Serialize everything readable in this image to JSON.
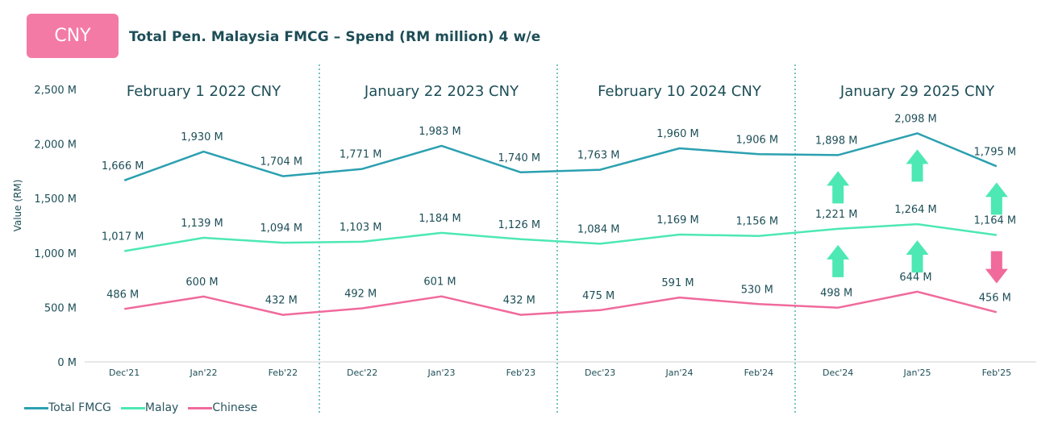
{
  "badge": "CNY",
  "title": "Total Pen. Malaysia FMCG – Spend (RM million) 4 w/e",
  "colors": {
    "total": "#2ba0b0",
    "malay": "#4de8b4",
    "chinese": "#f06a9c",
    "divider": "#2aa3a0",
    "text": "#1d4e57"
  },
  "chart_data": {
    "type": "line",
    "ylabel": "Value (RM)",
    "ylim": [
      0,
      2500
    ],
    "yticks": [
      "0 M",
      "500 M",
      "1,000 M",
      "1,500 M",
      "2,000 M",
      "2,500 M"
    ],
    "categories": [
      "Dec'21",
      "Jan'22",
      "Feb'22",
      "Dec'22",
      "Jan'23",
      "Feb'23",
      "Dec'23",
      "Jan'24",
      "Feb'24",
      "Dec'24",
      "Jan'25",
      "Feb'25"
    ],
    "periods": [
      "February 1 2022 CNY",
      "January 22 2023 CNY",
      "February 10 2024 CNY",
      "January 29 2025 CNY"
    ],
    "series": [
      {
        "name": "Total FMCG",
        "key": "total",
        "values": [
          1666,
          1930,
          1704,
          1771,
          1983,
          1740,
          1763,
          1960,
          1906,
          1898,
          2098,
          1795
        ],
        "labels": [
          "1,666 M",
          "1,930 M",
          "1,704 M",
          "1,771 M",
          "1,983 M",
          "1,740 M",
          "1,763 M",
          "1,960 M",
          "1,906 M",
          "1,898 M",
          "2,098 M",
          "1,795 M"
        ]
      },
      {
        "name": "Malay",
        "key": "malay",
        "values": [
          1017,
          1139,
          1094,
          1103,
          1184,
          1126,
          1084,
          1169,
          1156,
          1221,
          1264,
          1164
        ],
        "labels": [
          "1,017 M",
          "1,139 M",
          "1,094 M",
          "1,103 M",
          "1,184 M",
          "1,126 M",
          "1,084 M",
          "1,169 M",
          "1,156 M",
          "1,221 M",
          "1,264 M",
          "1,164 M"
        ]
      },
      {
        "name": "Chinese",
        "key": "chinese",
        "values": [
          486,
          600,
          432,
          492,
          601,
          432,
          475,
          591,
          530,
          498,
          644,
          456
        ],
        "labels": [
          "486 M",
          "600 M",
          "432 M",
          "492 M",
          "601 M",
          "432 M",
          "475 M",
          "591 M",
          "530 M",
          "498 M",
          "644 M",
          "456 M"
        ]
      }
    ],
    "arrows": [
      {
        "series": "total",
        "index": 9,
        "direction": "up"
      },
      {
        "series": "total",
        "index": 10,
        "direction": "up"
      },
      {
        "series": "total",
        "index": 11,
        "direction": "up"
      },
      {
        "series": "malay",
        "index": 9,
        "direction": "up"
      },
      {
        "series": "malay",
        "index": 10,
        "direction": "up"
      },
      {
        "series": "malay",
        "index": 11,
        "direction": "down"
      }
    ],
    "legend_position": "bottom-left",
    "grid": false
  },
  "legend": [
    "Total FMCG",
    "Malay",
    "Chinese"
  ]
}
